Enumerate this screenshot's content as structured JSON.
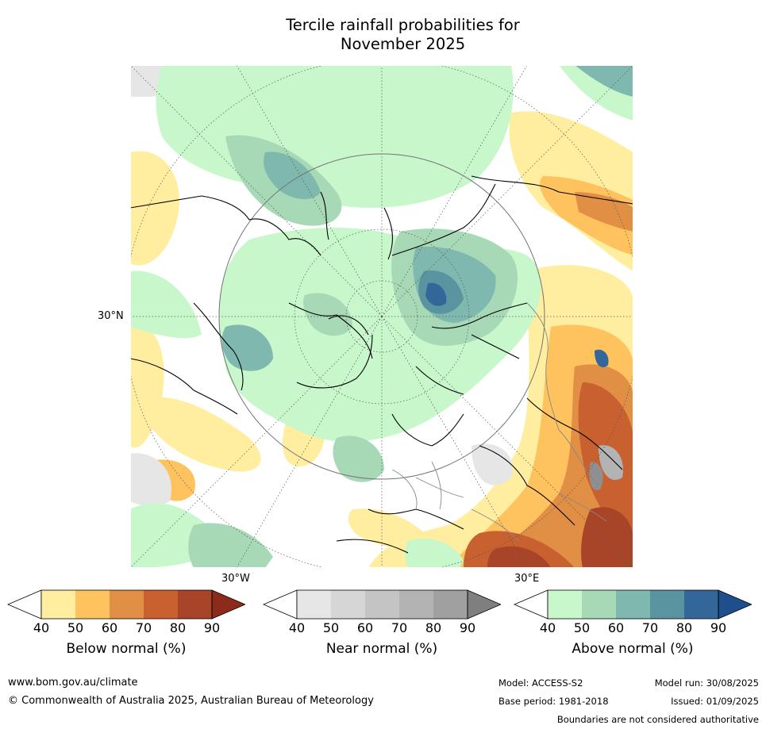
{
  "title_line1": "Tercile rainfall probabilities for",
  "title_line2": "November 2025",
  "map_labels": {
    "lat_30n": "30°N",
    "lon_30w": "30°W",
    "lon_30e": "30°E"
  },
  "legends": [
    {
      "title": "Below normal (%)",
      "ticks": [
        "40",
        "50",
        "60",
        "70",
        "80",
        "90"
      ],
      "colors": [
        "#ffeda0",
        "#fec35f",
        "#e08f45",
        "#c8602f",
        "#a84428"
      ],
      "over_color": "#8c2b1c"
    },
    {
      "title": "Near normal (%)",
      "ticks": [
        "40",
        "50",
        "60",
        "70",
        "80",
        "90"
      ],
      "colors": [
        "#e6e6e6",
        "#d6d6d6",
        "#c4c4c4",
        "#b3b3b3",
        "#a0a0a0"
      ],
      "over_color": "#7f7f7f"
    },
    {
      "title": "Above normal (%)",
      "ticks": [
        "40",
        "50",
        "60",
        "70",
        "80",
        "90"
      ],
      "colors": [
        "#c8f7cc",
        "#a8d9b7",
        "#7fb8ae",
        "#5a94a0",
        "#336699"
      ],
      "over_color": "#1f4e8c"
    }
  ],
  "footer": {
    "website": "www.bom.gov.au/climate",
    "copyright": "© Commonwealth of Australia 2025, Australian Bureau of Meteorology",
    "model": "Model: ACCESS-S2",
    "base_period": "Base period: 1981-2018",
    "model_run": "Model run: 30/08/2025",
    "issued": "Issued: 01/09/2025",
    "disclaimer": "Boundaries are not considered authoritative"
  },
  "colors": {
    "land_outline": "#000000",
    "grid": "#555555",
    "ocean_bg": "#ffffff"
  }
}
